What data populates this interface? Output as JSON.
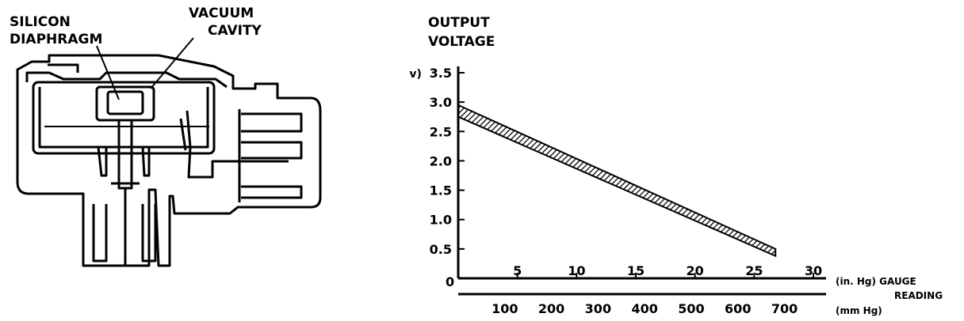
{
  "sensor_diagram": {
    "labels": {
      "silicon_line1": "SILICON",
      "silicon_line2": "DIAPHRAGM",
      "vacuum_line1": "VACUUM",
      "vacuum_line2": "CAVITY"
    }
  },
  "chart_data": {
    "type": "area",
    "title_line1": "OUTPUT",
    "title_line2": "VOLTAGE",
    "ylabel": "(v)",
    "ylim": [
      0,
      3.5
    ],
    "y_ticks": [
      0.5,
      1.0,
      1.5,
      2.0,
      2.5,
      3.0,
      3.5
    ],
    "y_tick_labels": [
      "0.5",
      "1.0",
      "1.5",
      "2.0",
      "2.5",
      "3.0",
      "3.5"
    ],
    "x_origin_label": "0",
    "xlim": [
      0,
      30
    ],
    "x_ticks": [
      5,
      10,
      15,
      20,
      25,
      30
    ],
    "x_tick_labels": [
      "5",
      "10",
      "15",
      "20",
      "25",
      "30"
    ],
    "xlabel_inhg": "(in. Hg) GAUGE",
    "xlabel_reading": "READING",
    "mmhg_ticks": [
      100,
      200,
      300,
      400,
      500,
      600,
      700
    ],
    "mmhg_tick_labels": [
      "100",
      "200",
      "300",
      "400",
      "500",
      "600",
      "700"
    ],
    "xlabel_mmhg": "(mm Hg)",
    "series": [
      {
        "upper": [
          [
            0,
            2.95
          ],
          [
            26.8,
            0.5
          ]
        ],
        "lower": [
          [
            0,
            2.75
          ],
          [
            26.8,
            0.38
          ]
        ]
      }
    ],
    "grid": false
  }
}
